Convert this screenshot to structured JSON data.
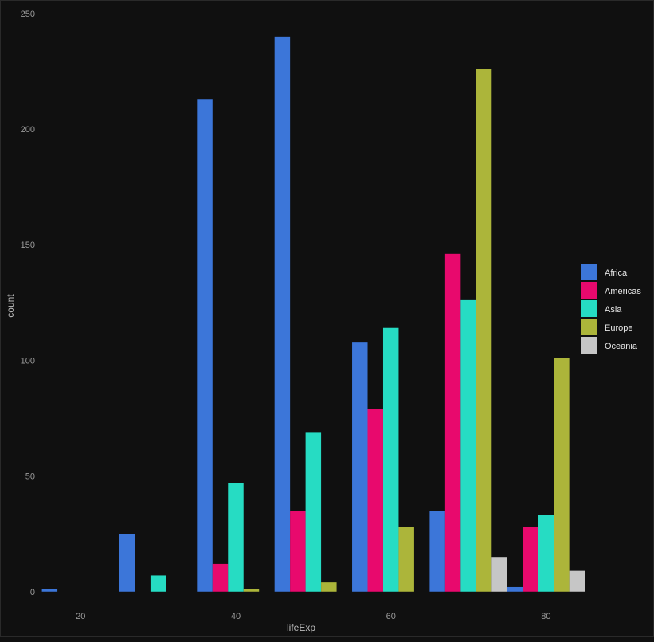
{
  "chart_data": {
    "type": "bar",
    "xlabel": "lifeExp",
    "ylabel": "count",
    "x": [
      20,
      30,
      40,
      50,
      60,
      70,
      80
    ],
    "xlim": [
      13.5,
      93
    ],
    "ylim": [
      -8,
      252
    ],
    "xticks": [
      20,
      40,
      60,
      80
    ],
    "yticks": [
      0,
      50,
      100,
      150,
      200,
      250
    ],
    "grid": false,
    "legend_position": "right",
    "series": [
      {
        "name": "Africa",
        "color": "#3c76d9",
        "values": [
          1,
          25,
          213,
          240,
          108,
          35,
          2
        ]
      },
      {
        "name": "Americas",
        "color": "#e8096d",
        "values": [
          0,
          0,
          12,
          35,
          79,
          146,
          28
        ]
      },
      {
        "name": "Asia",
        "color": "#26dcc3",
        "values": [
          0,
          7,
          47,
          69,
          114,
          126,
          33
        ]
      },
      {
        "name": "Europe",
        "color": "#acb53a",
        "values": [
          0,
          0,
          1,
          4,
          28,
          226,
          101
        ]
      },
      {
        "name": "Oceania",
        "color": "#c6c6c6",
        "values": [
          0,
          0,
          0,
          0,
          0,
          15,
          9
        ]
      }
    ]
  }
}
